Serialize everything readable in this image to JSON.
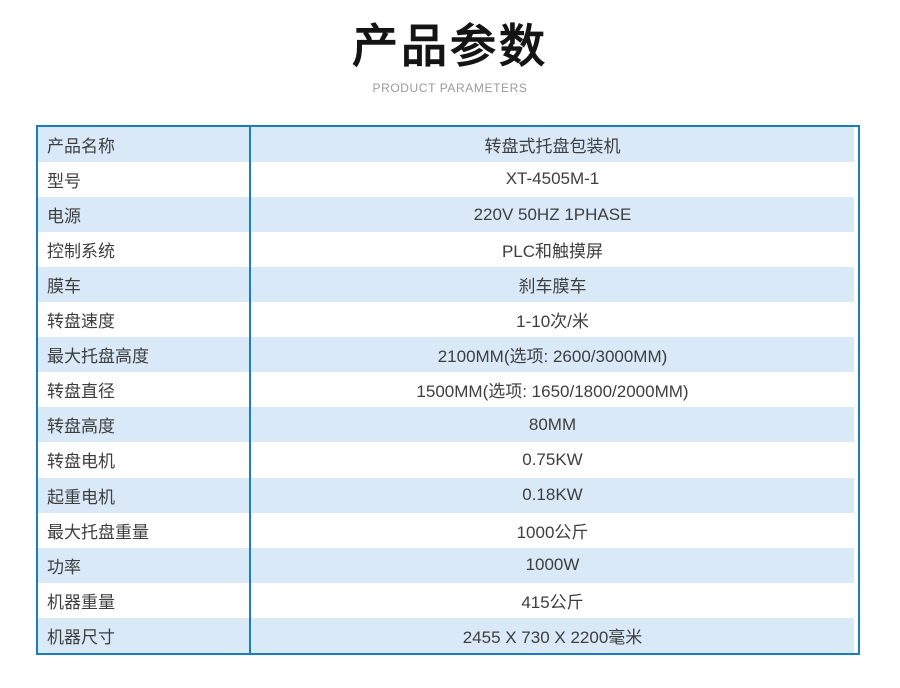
{
  "header": {
    "title": "产品参数",
    "subtitle": "PRODUCT PARAMETERS"
  },
  "colors": {
    "table_border_blue": "#1a7dc0",
    "row_shaded_blue": "#d9e9f8",
    "row_white": "#ffffff",
    "table_text": "#3e3e3e",
    "title_text": "#141414",
    "subtitle_gray": "#9b9b9b"
  },
  "table": {
    "rows": [
      {
        "label": "产品名称",
        "value": "转盘式托盘包装机"
      },
      {
        "label": "型号",
        "value": "XT-4505M-1"
      },
      {
        "label": "电源",
        "value": "220V 50HZ 1PHASE"
      },
      {
        "label": "控制系统",
        "value": "PLC和触摸屏"
      },
      {
        "label": "膜车",
        "value": "刹车膜车"
      },
      {
        "label": "转盘速度",
        "value": "1-10次/米"
      },
      {
        "label": "最大托盘高度",
        "value": "2100MM(选项: 2600/3000MM)"
      },
      {
        "label": "转盘直径",
        "value": "1500MM(选项: 1650/1800/2000MM)"
      },
      {
        "label": "转盘高度",
        "value": "80MM"
      },
      {
        "label": "转盘电机",
        "value": "0.75KW"
      },
      {
        "label": "起重电机",
        "value": "0.18KW"
      },
      {
        "label": "最大托盘重量",
        "value": "1000公斤"
      },
      {
        "label": "功率",
        "value": "1000W"
      },
      {
        "label": "机器重量",
        "value": "415公斤"
      },
      {
        "label": "机器尺寸",
        "value": "2455 X 730 X 2200毫米"
      }
    ]
  }
}
